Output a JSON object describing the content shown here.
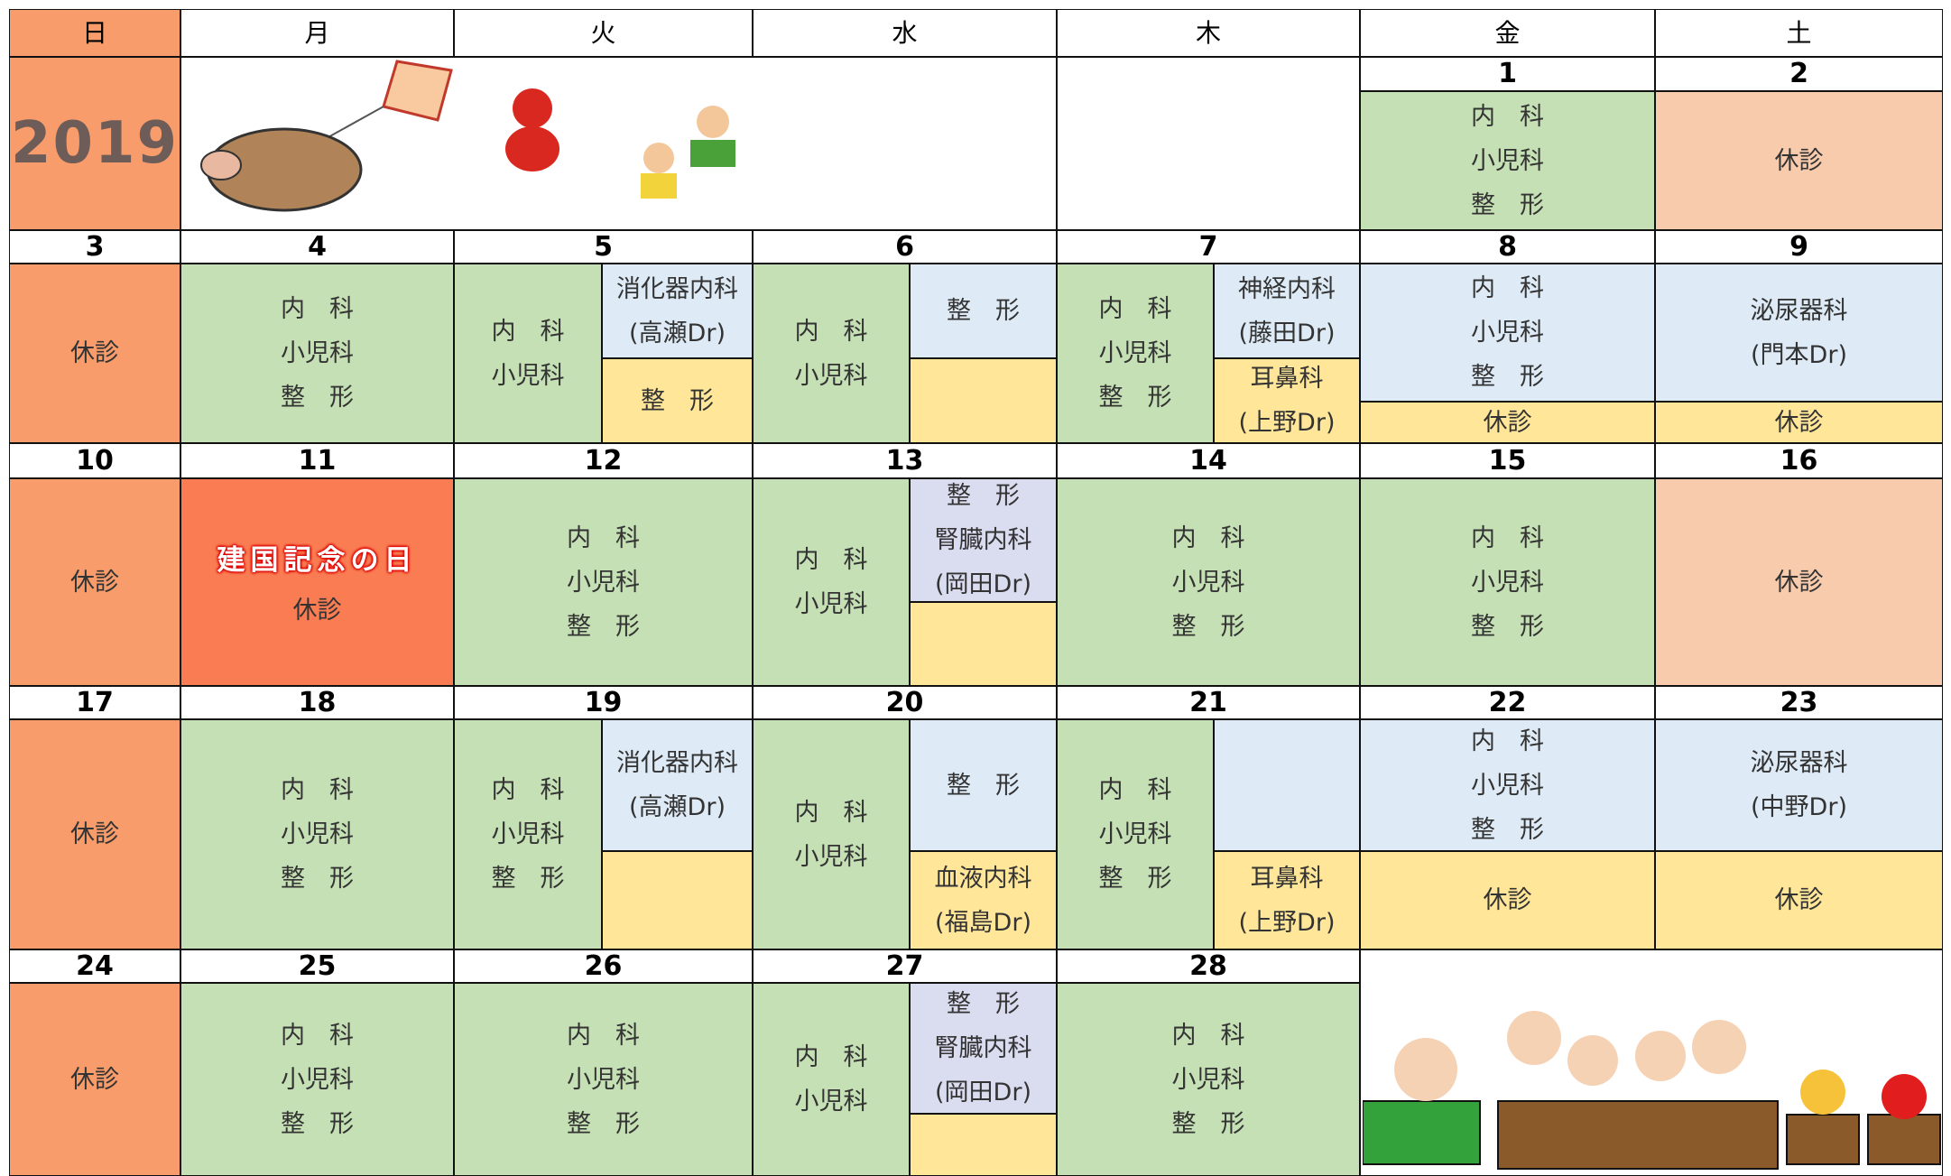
{
  "header": {
    "days": [
      "日",
      "月",
      "火",
      "水",
      "木",
      "金",
      "土"
    ],
    "year": "2019"
  },
  "weeks": [
    {
      "dates": [
        1,
        2
      ],
      "cells": [
        [
          "内　科",
          "小児科",
          "整　形"
        ],
        [
          "休診"
        ]
      ]
    },
    {
      "dates": [
        3,
        4,
        5,
        6,
        7,
        8,
        9
      ],
      "cells": [
        [
          "休診"
        ],
        [
          "内　科",
          "小児科",
          "整　形"
        ],
        [
          "内　科",
          "小児科"
        ],
        [
          "消化器内科",
          "(高瀬Dr)"
        ],
        [
          "整　形"
        ],
        [
          "内　科",
          "小児科"
        ],
        [
          "整　形"
        ],
        [
          "内　科",
          "小児科",
          "整　形"
        ],
        [
          "神経内科",
          "(藤田Dr)"
        ],
        [
          "耳鼻科",
          "(上野Dr)"
        ],
        [
          "内　科",
          "小児科",
          "整　形"
        ],
        [
          "休診"
        ],
        [
          "泌尿器科",
          "(門本Dr)"
        ],
        [
          "休診"
        ]
      ]
    },
    {
      "dates": [
        10,
        11,
        12,
        13,
        14,
        15,
        16
      ],
      "holiday": "建国記念の日",
      "cells": [
        [
          "休診"
        ],
        [
          "休診"
        ],
        [
          "内　科",
          "小児科",
          "整　形"
        ],
        [
          "内　科",
          "小児科"
        ],
        [
          "整　形",
          "腎臓内科",
          "(岡田Dr)"
        ],
        [
          "内　科",
          "小児科",
          "整　形"
        ],
        [
          "内　科",
          "小児科",
          "整　形"
        ],
        [
          "休診"
        ]
      ]
    },
    {
      "dates": [
        17,
        18,
        19,
        20,
        21,
        22,
        23
      ],
      "cells": [
        [
          "休診"
        ],
        [
          "内　科",
          "小児科",
          "整　形"
        ],
        [
          "内　科",
          "小児科",
          "整　形"
        ],
        [
          "消化器内科",
          "(高瀬Dr)"
        ],
        [
          "内　科",
          "小児科"
        ],
        [
          "整　形"
        ],
        [
          "血液内科",
          "(福島Dr)"
        ],
        [
          "内　科",
          "小児科",
          "整　形"
        ],
        [
          "耳鼻科",
          "(上野Dr)"
        ],
        [
          "内　科",
          "小児科",
          "整　形"
        ],
        [
          "休診"
        ],
        [
          "泌尿器科",
          "(中野Dr)"
        ],
        [
          "休診"
        ]
      ]
    },
    {
      "dates": [
        24,
        25,
        26,
        27,
        28
      ],
      "cells": [
        [
          "休診"
        ],
        [
          "内　科",
          "小児科",
          "整　形"
        ],
        [
          "内　科",
          "小児科",
          "整　形"
        ],
        [
          "内　科",
          "小児科"
        ],
        [
          "整　形",
          "腎臓内科",
          "(岡田Dr)"
        ],
        [
          "内　科",
          "小児科",
          "整　形"
        ]
      ]
    }
  ]
}
